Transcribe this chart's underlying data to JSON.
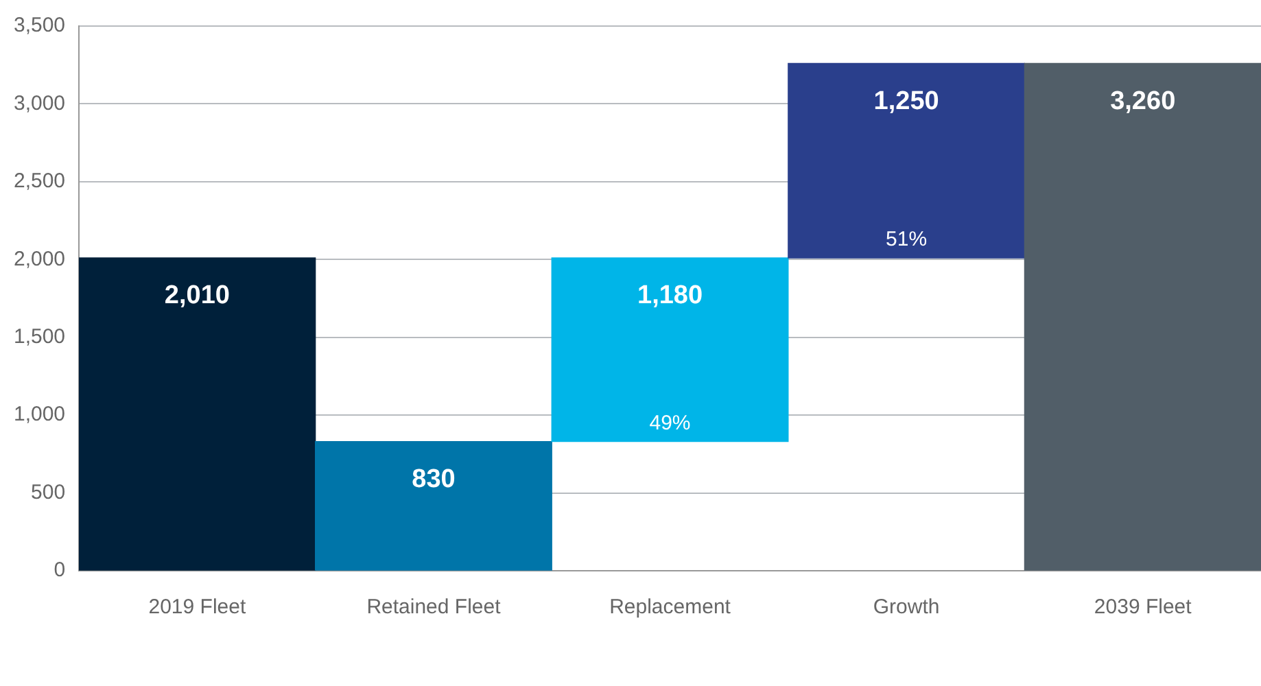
{
  "chart_data": {
    "type": "bar",
    "categories": [
      "2019 Fleet",
      "Retained Fleet",
      "Replacement",
      "Growth",
      "2039 Fleet"
    ],
    "values": [
      2010,
      830,
      1180,
      1250,
      3260
    ],
    "base": [
      0,
      0,
      830,
      2010,
      0
    ],
    "colors": [
      "#00203a",
      "#0075a9",
      "#00b5e8",
      "#2a3f8c",
      "#515e68"
    ],
    "ylim": [
      0,
      3500
    ],
    "yticks": [
      {
        "value": 0,
        "label": "0"
      },
      {
        "value": 500,
        "label": "500"
      },
      {
        "value": 1000,
        "label": "1,000"
      },
      {
        "value": 1500,
        "label": "1,500"
      },
      {
        "value": 2000,
        "label": "2,000"
      },
      {
        "value": 2500,
        "label": "2,500"
      },
      {
        "value": 3000,
        "label": "3,000"
      },
      {
        "value": 3500,
        "label": "3,500"
      }
    ],
    "grid": "y",
    "legend": false,
    "data_labels": true,
    "value_labels": [
      "2,010",
      "830",
      "1,180",
      "1,250",
      "3,260"
    ],
    "annotations": [
      "49%",
      "51%"
    ]
  }
}
